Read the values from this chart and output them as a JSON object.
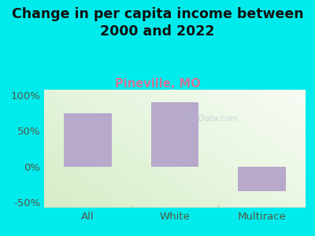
{
  "title": "Change in per capita income between\n2000 and 2022",
  "subtitle": "Pineville, MO",
  "categories": [
    "All",
    "White",
    "Multirace"
  ],
  "values": [
    75,
    90,
    -35
  ],
  "bar_color": "#b8a8cc",
  "background_color": "#00ecec",
  "plot_bg_color_topleft": "#c8ddb8",
  "plot_bg_color_topright": "#e8eedc",
  "plot_bg_color_bottomleft": "#d8e8c8",
  "plot_bg_color_bottomright": "#f8faf0",
  "title_color": "#111111",
  "subtitle_color": "#cc7799",
  "tick_label_color": "#555544",
  "ytick_label_color": "#555544",
  "ylim": [
    -58,
    108
  ],
  "yticks": [
    -50,
    0,
    50,
    100
  ],
  "ytick_labels": [
    "-50%",
    "0%",
    "50%",
    "100%"
  ],
  "separator_color": "#aaccaa",
  "bottom_line_color": "#aaccaa",
  "title_fontsize": 12.5,
  "subtitle_fontsize": 10.5,
  "tick_fontsize": 9.5,
  "watermark": "City-Data.com"
}
